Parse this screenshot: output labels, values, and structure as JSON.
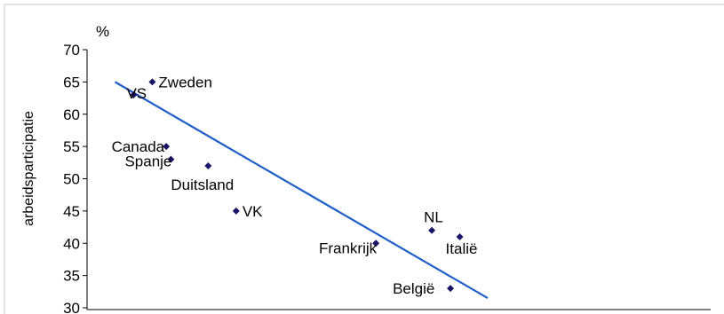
{
  "chart_data": {
    "type": "scatter",
    "title": "",
    "xlabel": "",
    "ylabel": "arbeidsparticipatie",
    "y_unit": "%",
    "ylim": [
      30,
      70
    ],
    "y_ticks": [
      30,
      35,
      40,
      45,
      50,
      55,
      60,
      65,
      70
    ],
    "xlim": [
      0.55,
      1.0
    ],
    "grid": false,
    "legend": "none",
    "colors": {
      "points": "#1a1466",
      "trendline": "#1f5fc7",
      "axis": "#000000",
      "frame": "#c8c8c8"
    },
    "points": [
      {
        "label": "VS",
        "x": 0.6,
        "y": 63
      },
      {
        "label": "Zweden",
        "x": 0.62,
        "y": 65
      },
      {
        "label": "Canada",
        "x": 0.635,
        "y": 55
      },
      {
        "label": "Spanje",
        "x": 0.64,
        "y": 53
      },
      {
        "label": "Duitsland",
        "x": 0.68,
        "y": 52
      },
      {
        "label": "VK",
        "x": 0.71,
        "y": 45
      },
      {
        "label": "Frankrijk",
        "x": 0.86,
        "y": 40
      },
      {
        "label": "NL",
        "x": 0.92,
        "y": 42
      },
      {
        "label": "Italië",
        "x": 0.95,
        "y": 41
      },
      {
        "label": "België",
        "x": 0.94,
        "y": 33
      }
    ],
    "trendline": {
      "x": [
        0.58,
        0.98
      ],
      "y": [
        65,
        31.5
      ]
    }
  }
}
